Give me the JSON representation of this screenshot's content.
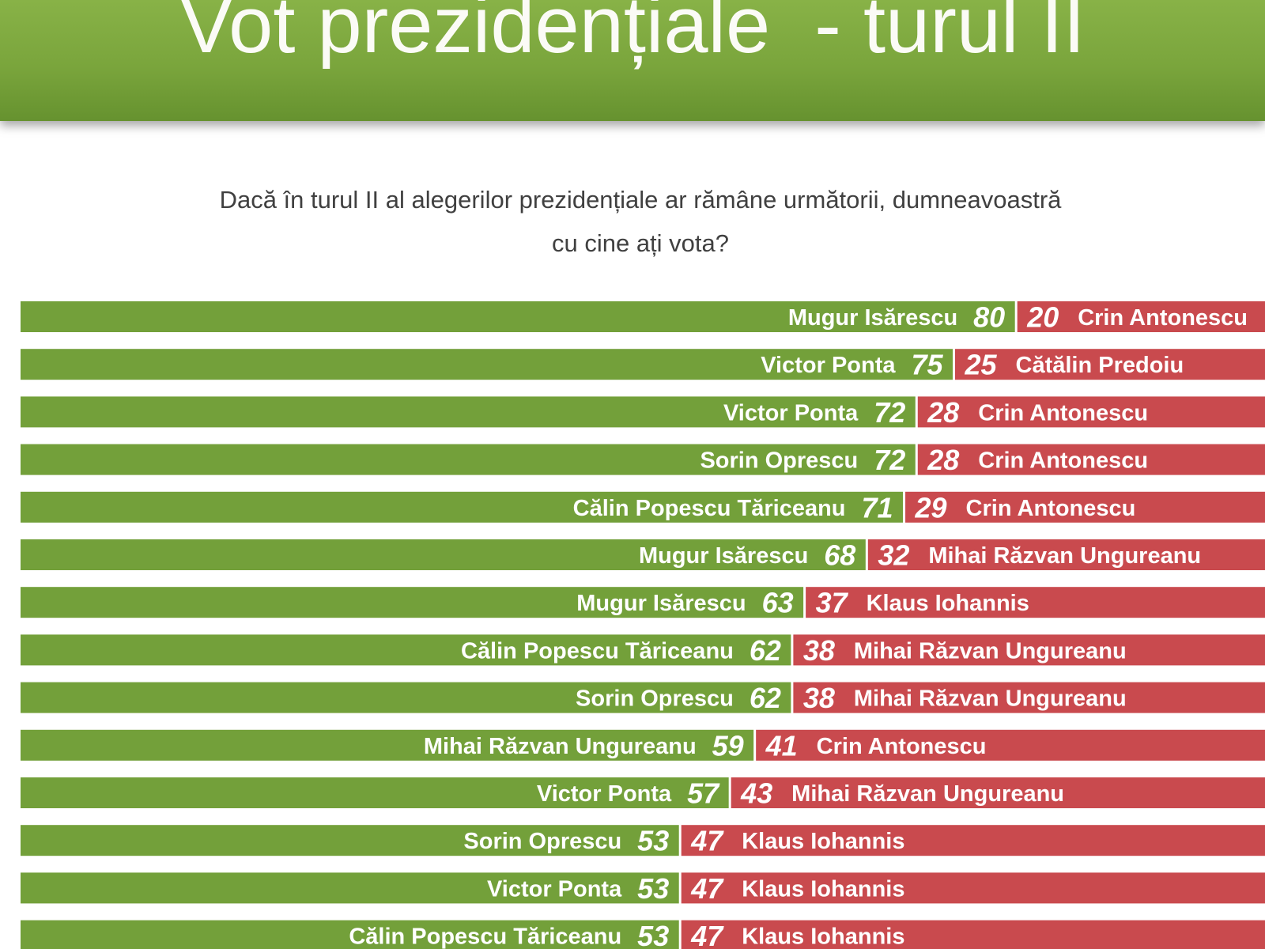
{
  "chart_data": {
    "type": "bar",
    "orientation": "horizontal",
    "stacked": true,
    "title": "Vot prezidențiale  - turul II",
    "subtitle": [
      "Dacă în turul II al alegerilor prezidențiale ar rămâne următorii, dumneavoastră",
      "cu cine ați vota?"
    ],
    "xlim": [
      0,
      100
    ],
    "grid": false,
    "colors": {
      "left_segment": "#73a03a",
      "right_segment": "#c94a4e"
    },
    "series": [
      {
        "values": [
          80,
          75,
          72,
          72,
          71,
          68,
          63,
          62,
          62,
          59,
          57,
          53,
          53,
          53
        ],
        "labels": [
          "Mugur Isărescu",
          "Victor Ponta",
          "Victor Ponta",
          "Sorin Oprescu",
          "Călin Popescu Tăriceanu",
          "Mugur Isărescu",
          "Mugur Isărescu",
          "Călin Popescu Tăriceanu",
          "Sorin Oprescu",
          "Mihai Răzvan Ungureanu",
          "Victor Ponta",
          "Sorin Oprescu",
          "Victor Ponta",
          "Călin Popescu Tăriceanu"
        ]
      },
      {
        "values": [
          20,
          25,
          28,
          28,
          29,
          32,
          37,
          38,
          38,
          41,
          43,
          47,
          47,
          47
        ],
        "labels": [
          "Crin Antonescu",
          "Cătălin Predoiu",
          "Crin Antonescu",
          "Crin Antonescu",
          "Crin Antonescu",
          "Mihai Răzvan Ungureanu",
          "Klaus Iohannis",
          "Mihai Răzvan Ungureanu",
          "Mihai Răzvan Ungureanu",
          "Crin Antonescu",
          "Mihai Răzvan Ungureanu",
          "Klaus Iohannis",
          "Klaus Iohannis",
          "Klaus Iohannis"
        ]
      }
    ]
  }
}
